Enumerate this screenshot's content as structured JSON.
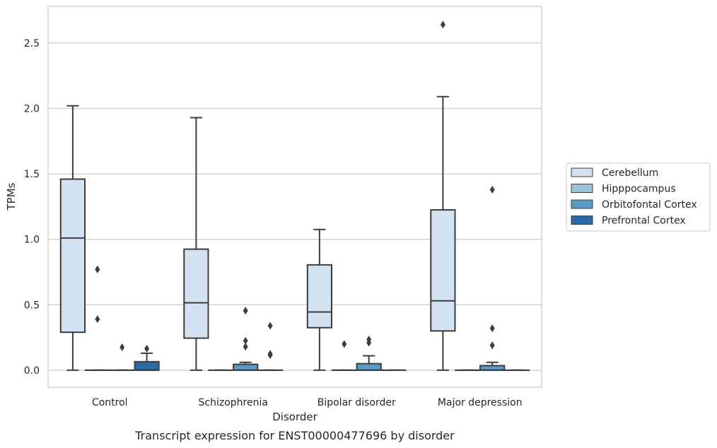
{
  "caption": "Transcript expression for ENST00000477696 by disorder",
  "chart_data": {
    "type": "box",
    "title": "",
    "xlabel": "Disorder",
    "ylabel": "TPMs",
    "ylim": [
      -0.13,
      2.78
    ],
    "yticks": [
      0.0,
      0.5,
      1.0,
      1.5,
      2.0,
      2.5
    ],
    "ytick_labels": [
      "0.0",
      "0.5",
      "1.0",
      "1.5",
      "2.0",
      "2.5"
    ],
    "grid": "horizontal",
    "legend_position": "right",
    "categories": [
      "Control",
      "Schizophrenia",
      "Bipolar disorder",
      "Major depression"
    ],
    "series": [
      {
        "name": "Cerebellum",
        "color": "#d3e2f0",
        "boxes": [
          {
            "whislo": 0.0,
            "q1": 0.29,
            "med": 1.01,
            "q3": 1.46,
            "whishi": 2.02,
            "fliers": []
          },
          {
            "whislo": 0.0,
            "q1": 0.245,
            "med": 0.515,
            "q3": 0.925,
            "whishi": 1.93,
            "fliers": []
          },
          {
            "whislo": 0.0,
            "q1": 0.325,
            "med": 0.445,
            "q3": 0.805,
            "whishi": 1.075,
            "fliers": []
          },
          {
            "whislo": 0.0,
            "q1": 0.3,
            "med": 0.53,
            "q3": 1.225,
            "whishi": 2.09,
            "fliers": [
              2.64
            ]
          }
        ]
      },
      {
        "name": "Hipppocampus",
        "color": "#9cc3de",
        "boxes": [
          {
            "whislo": 0.0,
            "q1": 0.0,
            "med": 0.0,
            "q3": 0.0,
            "whishi": 0.0,
            "fliers": [
              0.77,
              0.39
            ]
          },
          {
            "whislo": 0.0,
            "q1": 0.0,
            "med": 0.0,
            "q3": 0.0,
            "whishi": 0.0,
            "fliers": []
          },
          {
            "whislo": 0.0,
            "q1": 0.0,
            "med": 0.0,
            "q3": 0.0,
            "whishi": 0.0,
            "fliers": [
              0.2
            ]
          },
          {
            "whislo": 0.0,
            "q1": 0.0,
            "med": 0.0,
            "q3": 0.0,
            "whishi": 0.0,
            "fliers": []
          }
        ]
      },
      {
        "name": "Orbitofontal Cortex",
        "color": "#5b9ac5",
        "boxes": [
          {
            "whislo": 0.0,
            "q1": 0.0,
            "med": 0.0,
            "q3": 0.0,
            "whishi": 0.0,
            "fliers": [
              0.175
            ]
          },
          {
            "whislo": 0.0,
            "q1": 0.0,
            "med": 0.0,
            "q3": 0.045,
            "whishi": 0.06,
            "fliers": [
              0.455,
              0.225,
              0.18
            ]
          },
          {
            "whislo": 0.0,
            "q1": 0.0,
            "med": 0.0,
            "q3": 0.05,
            "whishi": 0.11,
            "fliers": [
              0.235,
              0.21
            ]
          },
          {
            "whislo": 0.0,
            "q1": 0.0,
            "med": 0.0,
            "q3": 0.035,
            "whishi": 0.06,
            "fliers": [
              1.38,
              0.32,
              0.19
            ]
          }
        ]
      },
      {
        "name": "Prefrontal Cortex",
        "color": "#2c6aa5",
        "boxes": [
          {
            "whislo": 0.0,
            "q1": 0.0,
            "med": 0.0,
            "q3": 0.065,
            "whishi": 0.13,
            "fliers": [
              0.165
            ]
          },
          {
            "whislo": 0.0,
            "q1": 0.0,
            "med": 0.0,
            "q3": 0.0,
            "whishi": 0.0,
            "fliers": [
              0.34,
              0.125,
              0.115
            ]
          },
          {
            "whislo": 0.0,
            "q1": 0.0,
            "med": 0.0,
            "q3": 0.0,
            "whishi": 0.0,
            "fliers": []
          },
          {
            "whislo": 0.0,
            "q1": 0.0,
            "med": 0.0,
            "q3": 0.0,
            "whishi": 0.0,
            "fliers": []
          }
        ]
      }
    ]
  }
}
